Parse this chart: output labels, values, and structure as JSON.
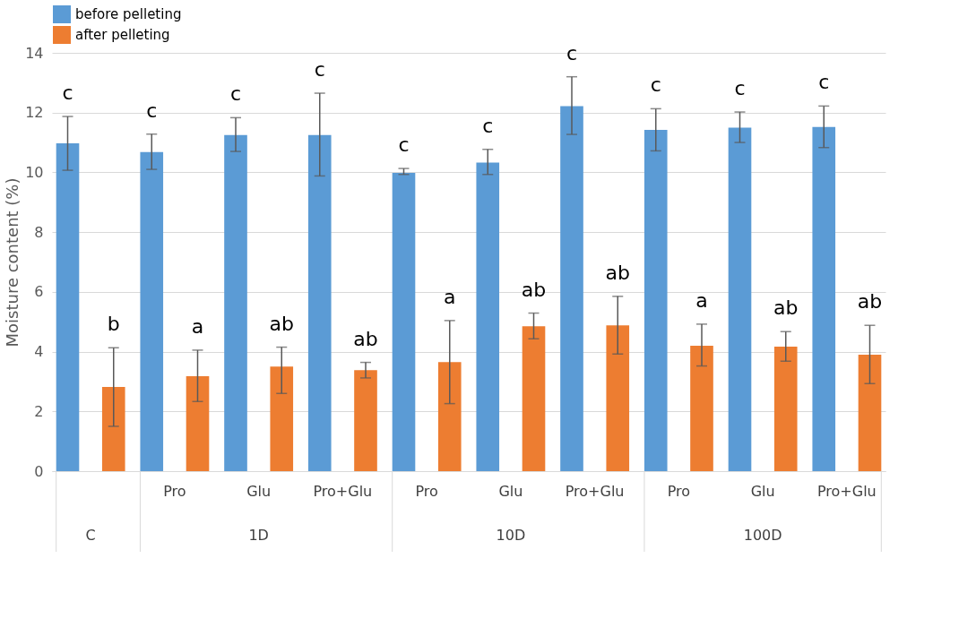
{
  "chart_data": {
    "type": "bar",
    "ylabel": "Moisture content (%)",
    "categories": [
      null,
      "Pro",
      "Glu",
      "Pro+Glu",
      "Pro",
      "Glu",
      "Pro+Glu",
      "Pro",
      "Glu",
      "Pro+Glu"
    ],
    "series": [
      {
        "name": "before pelleting",
        "color": "#5b9bd5",
        "values": [
          10.97,
          10.68,
          11.25,
          11.25,
          9.98,
          10.33,
          12.22,
          11.42,
          11.5,
          11.52
        ],
        "errors": [
          [
            10.07,
            11.87
          ],
          [
            10.1,
            11.28
          ],
          [
            10.7,
            11.83
          ],
          [
            9.88,
            12.65
          ],
          [
            9.93,
            10.13
          ],
          [
            9.93,
            10.77
          ],
          [
            11.27,
            13.2
          ],
          [
            10.72,
            12.13
          ],
          [
            11.0,
            12.02
          ],
          [
            10.83,
            12.22
          ]
        ]
      },
      {
        "name": "after pelleting",
        "color": "#ed7d31",
        "values": [
          2.82,
          3.18,
          3.5,
          3.38,
          3.65,
          4.85,
          4.88,
          4.2,
          4.17,
          3.9
        ],
        "errors": [
          [
            1.5,
            4.13
          ],
          [
            2.33,
            4.05
          ],
          [
            2.6,
            4.15
          ],
          [
            3.12,
            3.64
          ],
          [
            2.26,
            5.04
          ],
          [
            4.43,
            5.29
          ],
          [
            3.92,
            5.85
          ],
          [
            3.52,
            4.92
          ],
          [
            3.68,
            4.67
          ],
          [
            2.93,
            4.88
          ]
        ]
      }
    ],
    "ylim": [
      0,
      14
    ],
    "yticks": [
      0,
      2,
      4,
      6,
      8,
      10,
      12,
      14
    ],
    "grid": "y",
    "legend": "top",
    "annotations": [
      "C",
      "1D",
      "10D",
      "100D",
      "c",
      "b",
      "c",
      "a",
      "c",
      "ab",
      "c",
      "ab",
      "c",
      "a",
      "c",
      "ab",
      "c",
      "ab",
      "c",
      "a",
      "c",
      "ab",
      "c",
      "ab"
    ]
  }
}
